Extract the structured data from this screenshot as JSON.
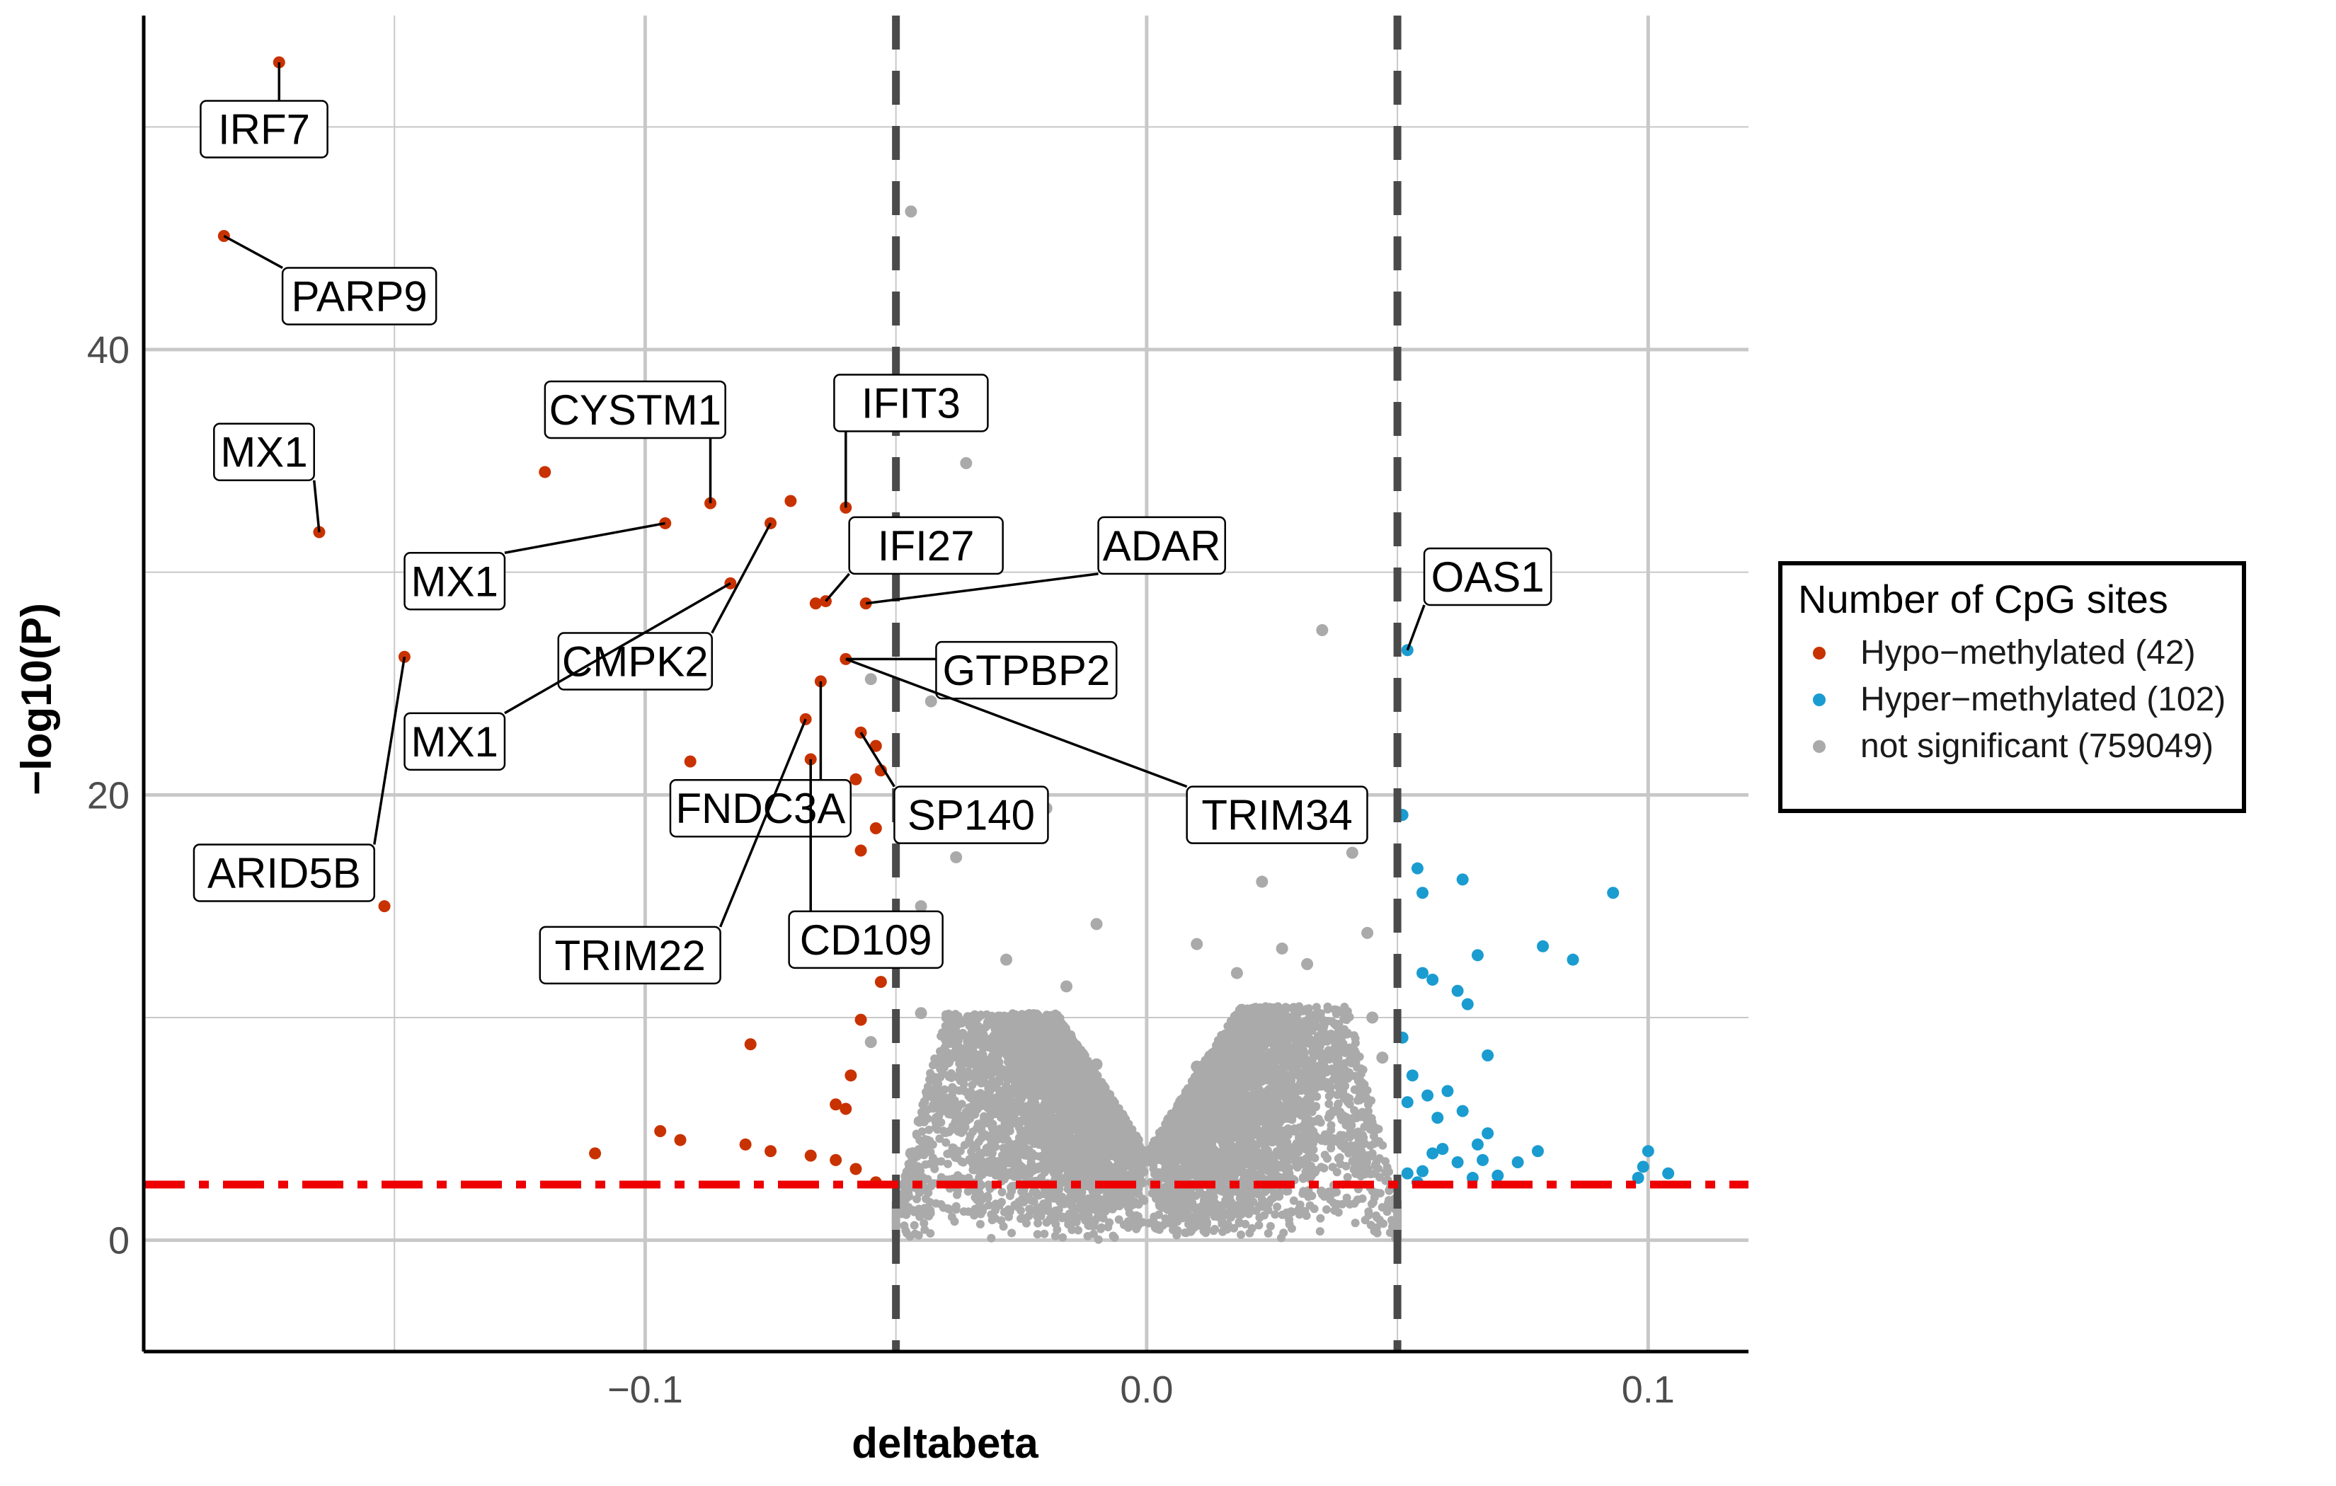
{
  "chart_data": {
    "type": "scatter",
    "xlabel": "deltabeta",
    "ylabel": "−log10(P)",
    "xlim": [
      -0.2,
      0.12
    ],
    "ylim": [
      -5,
      55
    ],
    "x_ticks": [
      {
        "value": -0.1,
        "label": "−0.1"
      },
      {
        "value": 0.0,
        "label": "0.0"
      },
      {
        "value": 0.1,
        "label": "0.1"
      }
    ],
    "y_ticks": [
      {
        "value": 0,
        "label": "0"
      },
      {
        "value": 20,
        "label": "20"
      },
      {
        "value": 40,
        "label": "40"
      }
    ],
    "grid": true,
    "vertical_thresholds": [
      -0.05,
      0.05
    ],
    "horizontal_threshold": 2.5,
    "colors": {
      "hypo": "#c83200",
      "hyper": "#1a9cd0",
      "ns": "#aaaaaa",
      "threshold_v": "#4a4a4a",
      "threshold_h": "#ee0000",
      "grid": "#c8c8c8"
    },
    "legend": {
      "title": "Number of CpG sites",
      "position": "right",
      "entries": [
        {
          "key": "hypo",
          "label": "Hypo−methylated (42)"
        },
        {
          "key": "hyper",
          "label": "Hyper−methylated (102)"
        },
        {
          "key": "ns",
          "label": "not significant (759049)"
        }
      ]
    },
    "series": [
      {
        "name": "Hypo−methylated (42)",
        "key": "hypo",
        "points": [
          [
            -0.173,
            52.9
          ],
          [
            -0.184,
            45.1
          ],
          [
            -0.165,
            31.8
          ],
          [
            -0.12,
            34.5
          ],
          [
            -0.096,
            32.2
          ],
          [
            -0.087,
            33.1
          ],
          [
            -0.075,
            32.2
          ],
          [
            -0.071,
            33.2
          ],
          [
            -0.06,
            32.9
          ],
          [
            -0.083,
            29.5
          ],
          [
            -0.066,
            28.6
          ],
          [
            -0.064,
            28.7
          ],
          [
            -0.056,
            28.6
          ],
          [
            -0.148,
            26.2
          ],
          [
            -0.06,
            26.1
          ],
          [
            -0.065,
            25.1
          ],
          [
            -0.068,
            23.4
          ],
          [
            -0.057,
            22.8
          ],
          [
            -0.054,
            22.2
          ],
          [
            -0.091,
            21.5
          ],
          [
            -0.067,
            21.6
          ],
          [
            -0.053,
            21.1
          ],
          [
            -0.058,
            20.7
          ],
          [
            -0.054,
            18.5
          ],
          [
            -0.057,
            17.5
          ],
          [
            -0.152,
            15.0
          ],
          [
            -0.088,
            12.0
          ],
          [
            -0.053,
            11.6
          ],
          [
            -0.057,
            9.9
          ],
          [
            -0.079,
            8.8
          ],
          [
            -0.059,
            7.4
          ],
          [
            -0.062,
            6.1
          ],
          [
            -0.06,
            5.9
          ],
          [
            -0.11,
            3.9
          ],
          [
            -0.097,
            4.9
          ],
          [
            -0.093,
            4.5
          ],
          [
            -0.08,
            4.3
          ],
          [
            -0.075,
            4.0
          ],
          [
            -0.067,
            3.8
          ],
          [
            -0.062,
            3.6
          ],
          [
            -0.058,
            3.2
          ],
          [
            -0.054,
            2.6
          ]
        ]
      },
      {
        "name": "Hyper−methylated (102)",
        "key": "hyper",
        "points": [
          [
            0.052,
            26.5
          ],
          [
            0.051,
            19.1
          ],
          [
            0.054,
            16.7
          ],
          [
            0.063,
            16.2
          ],
          [
            0.055,
            15.6
          ],
          [
            0.093,
            15.6
          ],
          [
            0.079,
            13.2
          ],
          [
            0.085,
            12.6
          ],
          [
            0.066,
            12.8
          ],
          [
            0.055,
            12.0
          ],
          [
            0.057,
            11.7
          ],
          [
            0.062,
            11.2
          ],
          [
            0.064,
            10.6
          ],
          [
            0.051,
            9.1
          ],
          [
            0.068,
            8.3
          ],
          [
            0.053,
            7.4
          ],
          [
            0.06,
            6.7
          ],
          [
            0.056,
            6.5
          ],
          [
            0.052,
            6.2
          ],
          [
            0.063,
            5.8
          ],
          [
            0.058,
            5.5
          ],
          [
            0.068,
            4.8
          ],
          [
            0.066,
            4.3
          ],
          [
            0.078,
            4.0
          ],
          [
            0.074,
            3.5
          ],
          [
            0.1,
            4.0
          ],
          [
            0.099,
            3.3
          ],
          [
            0.104,
            3.0
          ],
          [
            0.098,
            2.8
          ],
          [
            0.055,
            3.1
          ],
          [
            0.057,
            3.9
          ],
          [
            0.059,
            4.1
          ],
          [
            0.062,
            3.5
          ],
          [
            0.067,
            3.6
          ],
          [
            0.052,
            3.0
          ],
          [
            0.07,
            2.9
          ],
          [
            0.065,
            2.8
          ],
          [
            0.054,
            2.6
          ]
        ]
      },
      {
        "name": "not significant (759049)",
        "key": "ns",
        "points": [
          [
            -0.047,
            46.2
          ],
          [
            -0.036,
            34.9
          ],
          [
            0.035,
            27.4
          ],
          [
            -0.055,
            25.2
          ],
          [
            -0.043,
            24.2
          ],
          [
            -0.049,
            19.6
          ],
          [
            -0.038,
            17.2
          ],
          [
            -0.02,
            19.4
          ],
          [
            0.017,
            18.1
          ],
          [
            0.041,
            17.4
          ],
          [
            0.023,
            16.1
          ],
          [
            -0.045,
            15.0
          ],
          [
            -0.01,
            14.2
          ],
          [
            0.01,
            13.3
          ],
          [
            0.027,
            13.1
          ],
          [
            0.032,
            12.4
          ],
          [
            -0.028,
            12.6
          ],
          [
            0.018,
            12.0
          ],
          [
            -0.016,
            11.4
          ],
          [
            0.044,
            13.8
          ],
          [
            -0.045,
            10.2
          ],
          [
            0.045,
            10.0
          ],
          [
            -0.055,
            8.9
          ],
          [
            -0.035,
            8.5
          ],
          [
            0.035,
            8.3
          ],
          [
            0.047,
            8.2
          ],
          [
            -0.01,
            7.9
          ],
          [
            0.01,
            7.8
          ],
          [
            0.015,
            6.0
          ],
          [
            -0.015,
            6.2
          ],
          [
            0.02,
            4.5
          ],
          [
            -0.02,
            4.6
          ],
          [
            0.025,
            3.1
          ],
          [
            -0.025,
            3.0
          ],
          [
            0.006,
            2.0
          ],
          [
            -0.006,
            1.9
          ],
          [
            0.002,
            0.6
          ],
          [
            -0.002,
            0.7
          ]
        ]
      }
    ],
    "ns_cloud": {
      "xlim": [
        -0.05,
        0.05
      ],
      "peak_negative": [
        -0.027,
        10.2
      ],
      "peak_positive": [
        0.02,
        10.5
      ],
      "floor": [
        0.0,
        0.0
      ]
    },
    "labels": [
      {
        "text": "IRF7",
        "point": [
          -0.173,
          52.9
        ],
        "at": [
          -0.176,
          49.9
        ]
      },
      {
        "text": "PARP9",
        "point": [
          -0.184,
          45.1
        ],
        "at": [
          -0.157,
          42.4
        ]
      },
      {
        "text": "MX1",
        "point": [
          -0.165,
          31.8
        ],
        "at": [
          -0.176,
          35.4
        ]
      },
      {
        "text": "CYSTM1",
        "point": [
          -0.087,
          33.1
        ],
        "at": [
          -0.102,
          37.3
        ]
      },
      {
        "text": "IFIT3",
        "point": [
          -0.06,
          32.9
        ],
        "at": [
          -0.047,
          37.6
        ]
      },
      {
        "text": "MX1",
        "point": [
          -0.096,
          32.2
        ],
        "at": [
          -0.138,
          29.6
        ]
      },
      {
        "text": "IFI27",
        "point": [
          -0.064,
          28.7
        ],
        "at": [
          -0.044,
          31.2
        ]
      },
      {
        "text": "ADAR",
        "point": [
          -0.056,
          28.6
        ],
        "at": [
          0.003,
          31.2
        ]
      },
      {
        "text": "CMPK2",
        "point": [
          -0.075,
          32.2
        ],
        "at": [
          -0.102,
          26.0
        ]
      },
      {
        "text": "OAS1",
        "point": [
          0.052,
          26.5
        ],
        "at": [
          0.068,
          29.8
        ]
      },
      {
        "text": "GTPBP2",
        "point": [
          -0.06,
          26.1
        ],
        "at": [
          -0.024,
          25.6
        ]
      },
      {
        "text": "MX1",
        "point": [
          -0.083,
          29.5
        ],
        "at": [
          -0.138,
          22.4
        ]
      },
      {
        "text": "FNDC3A",
        "point": [
          -0.065,
          25.1
        ],
        "at": [
          -0.077,
          19.4
        ]
      },
      {
        "text": "SP140",
        "point": [
          -0.057,
          22.8
        ],
        "at": [
          -0.035,
          19.1
        ]
      },
      {
        "text": "TRIM34",
        "point": [
          -0.06,
          26.1
        ],
        "at": [
          0.026,
          19.1
        ]
      },
      {
        "text": "ARID5B",
        "point": [
          -0.148,
          26.2
        ],
        "at": [
          -0.172,
          16.5
        ]
      },
      {
        "text": "CD109",
        "point": [
          -0.067,
          21.6
        ],
        "at": [
          -0.056,
          13.5
        ]
      },
      {
        "text": "TRIM22",
        "point": [
          -0.068,
          23.4
        ],
        "at": [
          -0.103,
          12.8
        ]
      }
    ]
  }
}
